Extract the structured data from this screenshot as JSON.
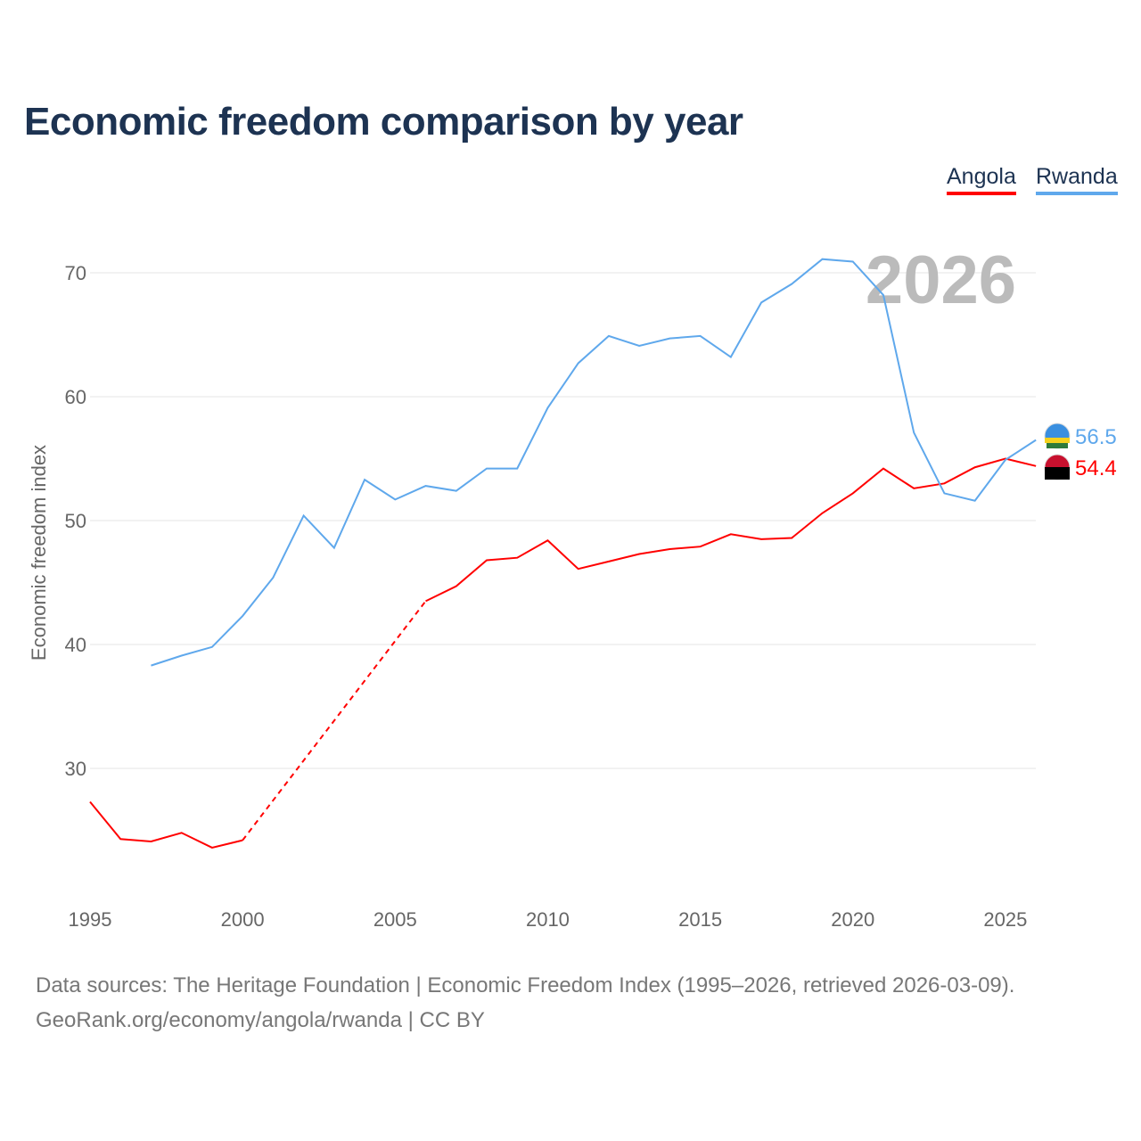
{
  "title": "Economic freedom comparison by year",
  "footer": {
    "line1": "Data sources: The Heritage Foundation | Economic Freedom Index (1995–2026, retrieved 2026-03-09).",
    "line2": "GeoRank.org/economy/angola/rwanda | CC BY"
  },
  "chart_data": {
    "type": "line",
    "title": "Economic freedom comparison by year",
    "ylabel": "Economic freedom index",
    "xlabel": "",
    "watermark_year": "2026",
    "xlim": [
      1995,
      2026
    ],
    "ylim": [
      20,
      75
    ],
    "xticks": [
      1995,
      2000,
      2005,
      2010,
      2015,
      2020,
      2025
    ],
    "yticks": [
      30,
      40,
      50,
      60,
      70
    ],
    "grid": true,
    "legend_position": "top-right",
    "series": [
      {
        "name": "Angola",
        "color": "#ff0000",
        "end_label": "54.4",
        "x": [
          1995,
          1996,
          1997,
          1998,
          1999,
          2000,
          2006,
          2007,
          2008,
          2009,
          2010,
          2011,
          2012,
          2013,
          2014,
          2015,
          2016,
          2017,
          2018,
          2019,
          2020,
          2021,
          2022,
          2023,
          2024,
          2025,
          2026
        ],
        "y": [
          27.3,
          24.3,
          24.1,
          24.8,
          23.6,
          24.2,
          43.5,
          44.7,
          46.8,
          47.0,
          48.4,
          46.1,
          46.7,
          47.3,
          47.7,
          47.9,
          48.9,
          48.5,
          48.6,
          50.6,
          52.2,
          54.2,
          52.6,
          53.0,
          54.3,
          55.0,
          54.4
        ],
        "gap": [
          2000,
          2006
        ]
      },
      {
        "name": "Rwanda",
        "color": "#5fa8ec",
        "end_label": "56.5",
        "x": [
          1997,
          1998,
          1999,
          2000,
          2001,
          2002,
          2003,
          2004,
          2005,
          2006,
          2007,
          2008,
          2009,
          2010,
          2011,
          2012,
          2013,
          2014,
          2015,
          2016,
          2017,
          2018,
          2019,
          2020,
          2021,
          2022,
          2023,
          2024,
          2025,
          2026
        ],
        "y": [
          38.3,
          39.1,
          39.8,
          42.3,
          45.4,
          50.4,
          47.8,
          53.3,
          51.7,
          52.8,
          52.4,
          54.2,
          54.2,
          59.1,
          62.7,
          64.9,
          64.1,
          64.7,
          64.9,
          63.2,
          67.6,
          69.1,
          71.1,
          70.9,
          68.2,
          57.1,
          52.2,
          51.6,
          54.9,
          56.5
        ]
      }
    ]
  }
}
